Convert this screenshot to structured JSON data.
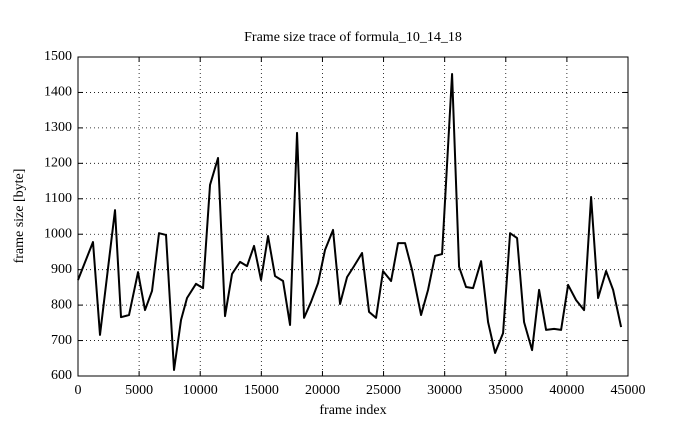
{
  "chart_data": {
    "type": "line",
    "title": "Frame size trace of formula_10_14_18",
    "x_label": "frame index",
    "y_label": "frame size [byte]",
    "x": [
      0,
      1227,
      1800,
      3028,
      3519,
      4174,
      4910,
      5483,
      6056,
      6628,
      7201,
      7856,
      8429,
      8920,
      9656,
      10229,
      10802,
      11457,
      12029,
      12602,
      13257,
      13830,
      14403,
      14975,
      15548,
      16121,
      16776,
      17349,
      17921,
      18494,
      19067,
      19640,
      20213,
      20867,
      21440,
      22013,
      22586,
      23241,
      23813,
      24386,
      24959,
      25614,
      26187,
      26759,
      27332,
      28069,
      28641,
      29214,
      29787,
      30606,
      31178,
      31751,
      32324,
      32979,
      33552,
      34124,
      34779,
      35352,
      35925,
      36497,
      37152,
      37725,
      38298,
      38953,
      39525,
      40098,
      40753,
      41408,
      41980,
      42553,
      43208,
      43781,
      44435
    ],
    "series": [
      {
        "color": "#000000",
        "values": [
          871,
          978,
          716,
          1068,
          766,
          772,
          893,
          786,
          840,
          1003,
          998,
          617,
          758,
          820,
          860,
          848,
          1139,
          1215,
          769,
          888,
          922,
          910,
          967,
          871,
          995,
          882,
          868,
          744,
          1286,
          764,
          809,
          862,
          956,
          1012,
          803,
          879,
          910,
          947,
          781,
          764,
          896,
          868,
          975,
          975,
          899,
          772,
          843,
          939,
          944,
          1452,
          908,
          851,
          848,
          924,
          752,
          665,
          721,
          1003,
          989,
          752,
          673,
          843,
          730,
          733,
          730,
          857,
          814,
          786,
          1105,
          820,
          896,
          843,
          738
        ]
      }
    ],
    "xlim": [
      0,
      45000
    ],
    "xticks": [
      0,
      5000,
      10000,
      15000,
      20000,
      25000,
      30000,
      35000,
      40000,
      45000
    ],
    "ylim": [
      600,
      1500
    ],
    "yticks": [
      600,
      700,
      800,
      900,
      1000,
      1100,
      1200,
      1300,
      1400,
      1500
    ],
    "grid": true
  }
}
